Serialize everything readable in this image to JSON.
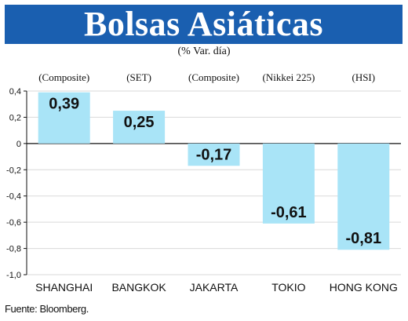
{
  "header": {
    "title": "Bolsas Asiáticas",
    "subtitle": "(% Var. día)"
  },
  "footer": {
    "source": "Fuente: Bloomberg."
  },
  "colors": {
    "banner": "#1a5fb0",
    "bar": "#a9e4f7",
    "grid": "#d9d9d9",
    "axis": "#111111"
  },
  "chart_data": {
    "type": "bar",
    "categories": [
      "SHANGHAI",
      "BANGKOK",
      "JAKARTA",
      "TOKIO",
      "HONG KONG"
    ],
    "index_names": [
      "(Composite)",
      "(SET)",
      "(Composite)",
      "(Nikkei 225)",
      "(HSI)"
    ],
    "values": [
      0.39,
      0.25,
      -0.17,
      -0.61,
      -0.81
    ],
    "value_labels": [
      "0,39",
      "0,25",
      "-0,17",
      "-0,61",
      "-0,81"
    ],
    "ylim": [
      -1.0,
      0.4
    ],
    "yticks": [
      0.4,
      0.2,
      0,
      -0.2,
      -0.4,
      -0.6,
      -0.8,
      -1.0
    ],
    "ytick_labels": [
      "0,4",
      "0,2",
      "0",
      "-0,2",
      "-0,4",
      "-0,6",
      "-0,8",
      "-1,0"
    ],
    "grid": true
  }
}
